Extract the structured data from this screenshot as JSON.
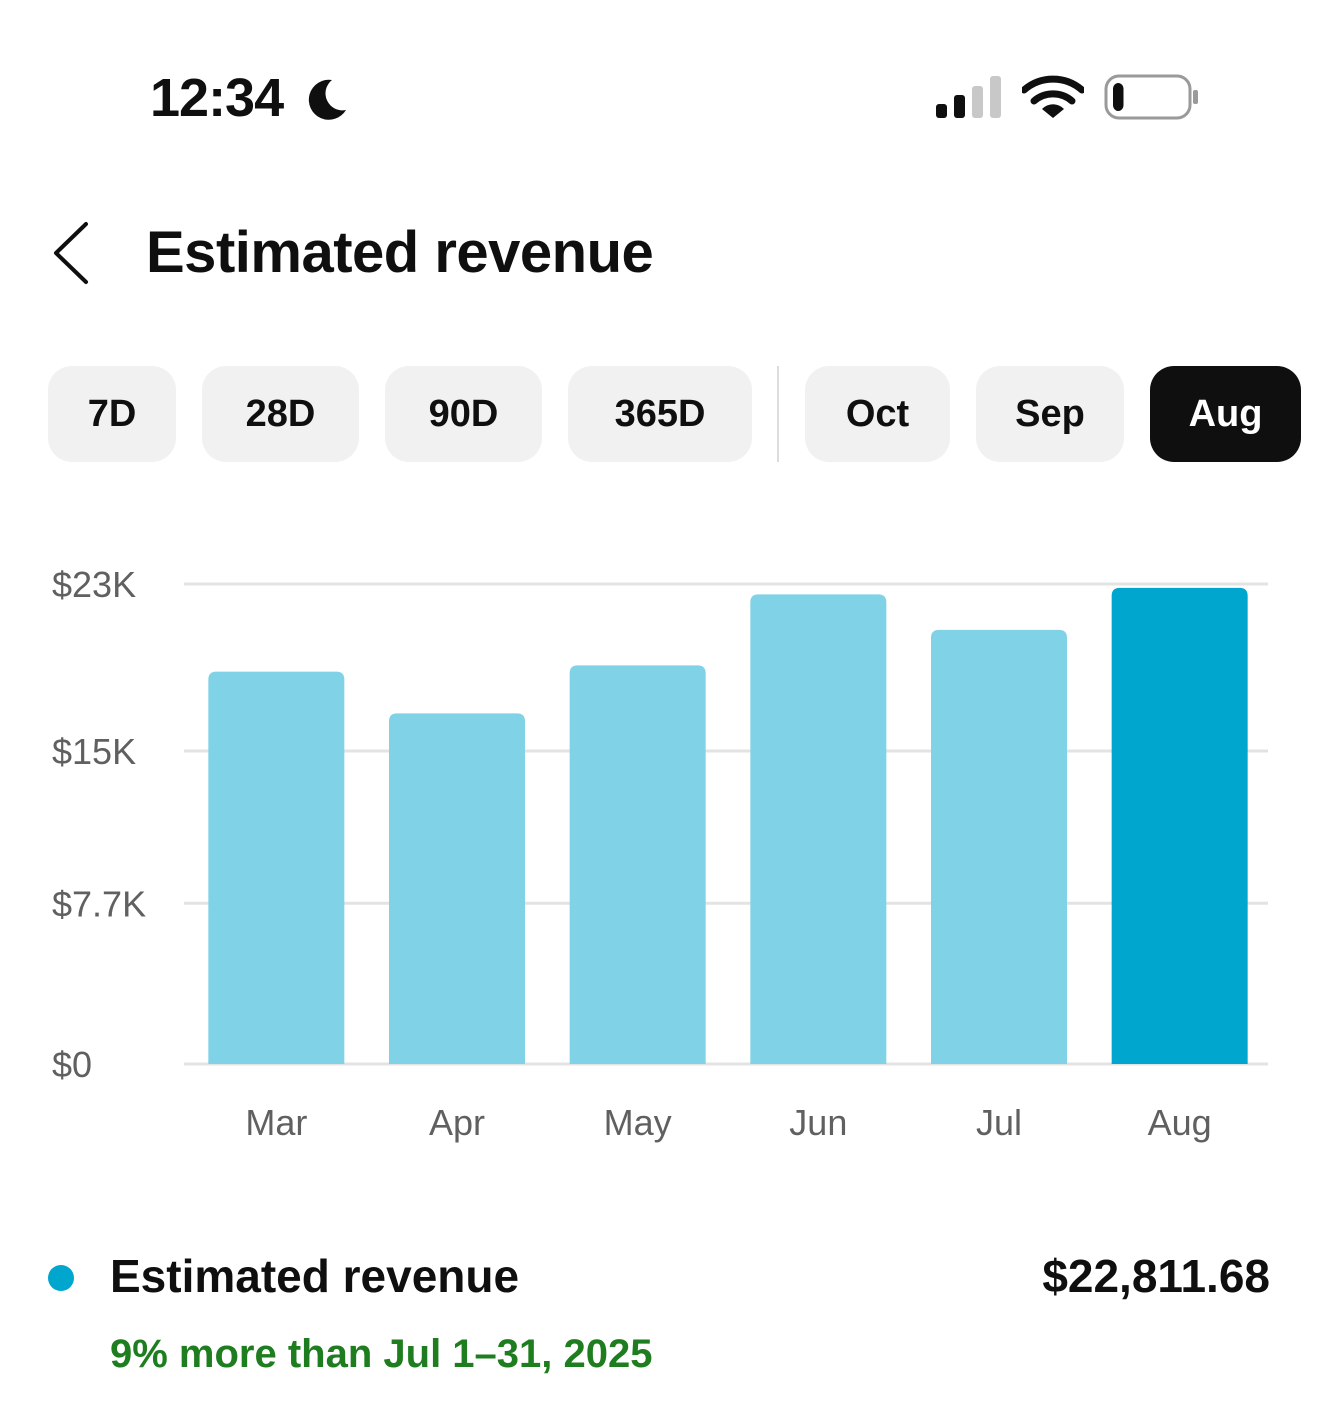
{
  "status_bar": {
    "time": "12:34",
    "moon_icon": "moon-icon",
    "signal_icon": "cellular-signal-icon",
    "wifi_icon": "wifi-icon",
    "battery_icon": "battery-icon",
    "battery_level": 0.15
  },
  "header": {
    "back_icon": "chevron-left-icon",
    "title": "Estimated revenue"
  },
  "periods": {
    "items": [
      "7D",
      "28D",
      "90D",
      "365D",
      "Oct",
      "Sep",
      "Aug"
    ],
    "selected": "Aug"
  },
  "colors": {
    "bar_default": "#80d2e6",
    "bar_selected": "#00a6cd",
    "grid": "#e3e3e3",
    "positive": "#1e7d1e",
    "chip_bg": "#f1f1f1",
    "chip_selected_bg": "#0f0f0f"
  },
  "chart_data": {
    "type": "bar",
    "categories": [
      "Mar",
      "Apr",
      "May",
      "Jun",
      "Jul",
      "Aug"
    ],
    "values": [
      18800,
      16800,
      19100,
      22500,
      20800,
      22811.68
    ],
    "highlighted": "Aug",
    "ylim": [
      0,
      23000
    ],
    "yticks": [
      {
        "value": 0,
        "label": "$0"
      },
      {
        "value": 7700,
        "label": "$7.7K"
      },
      {
        "value": 15000,
        "label": "$15K"
      },
      {
        "value": 23000,
        "label": "$23K"
      }
    ],
    "grid": true,
    "title": "",
    "xlabel": "",
    "ylabel": ""
  },
  "summary": {
    "label": "Estimated revenue",
    "value": "$22,811.68",
    "comparison": "9% more than Jul 1–31, 2025"
  }
}
